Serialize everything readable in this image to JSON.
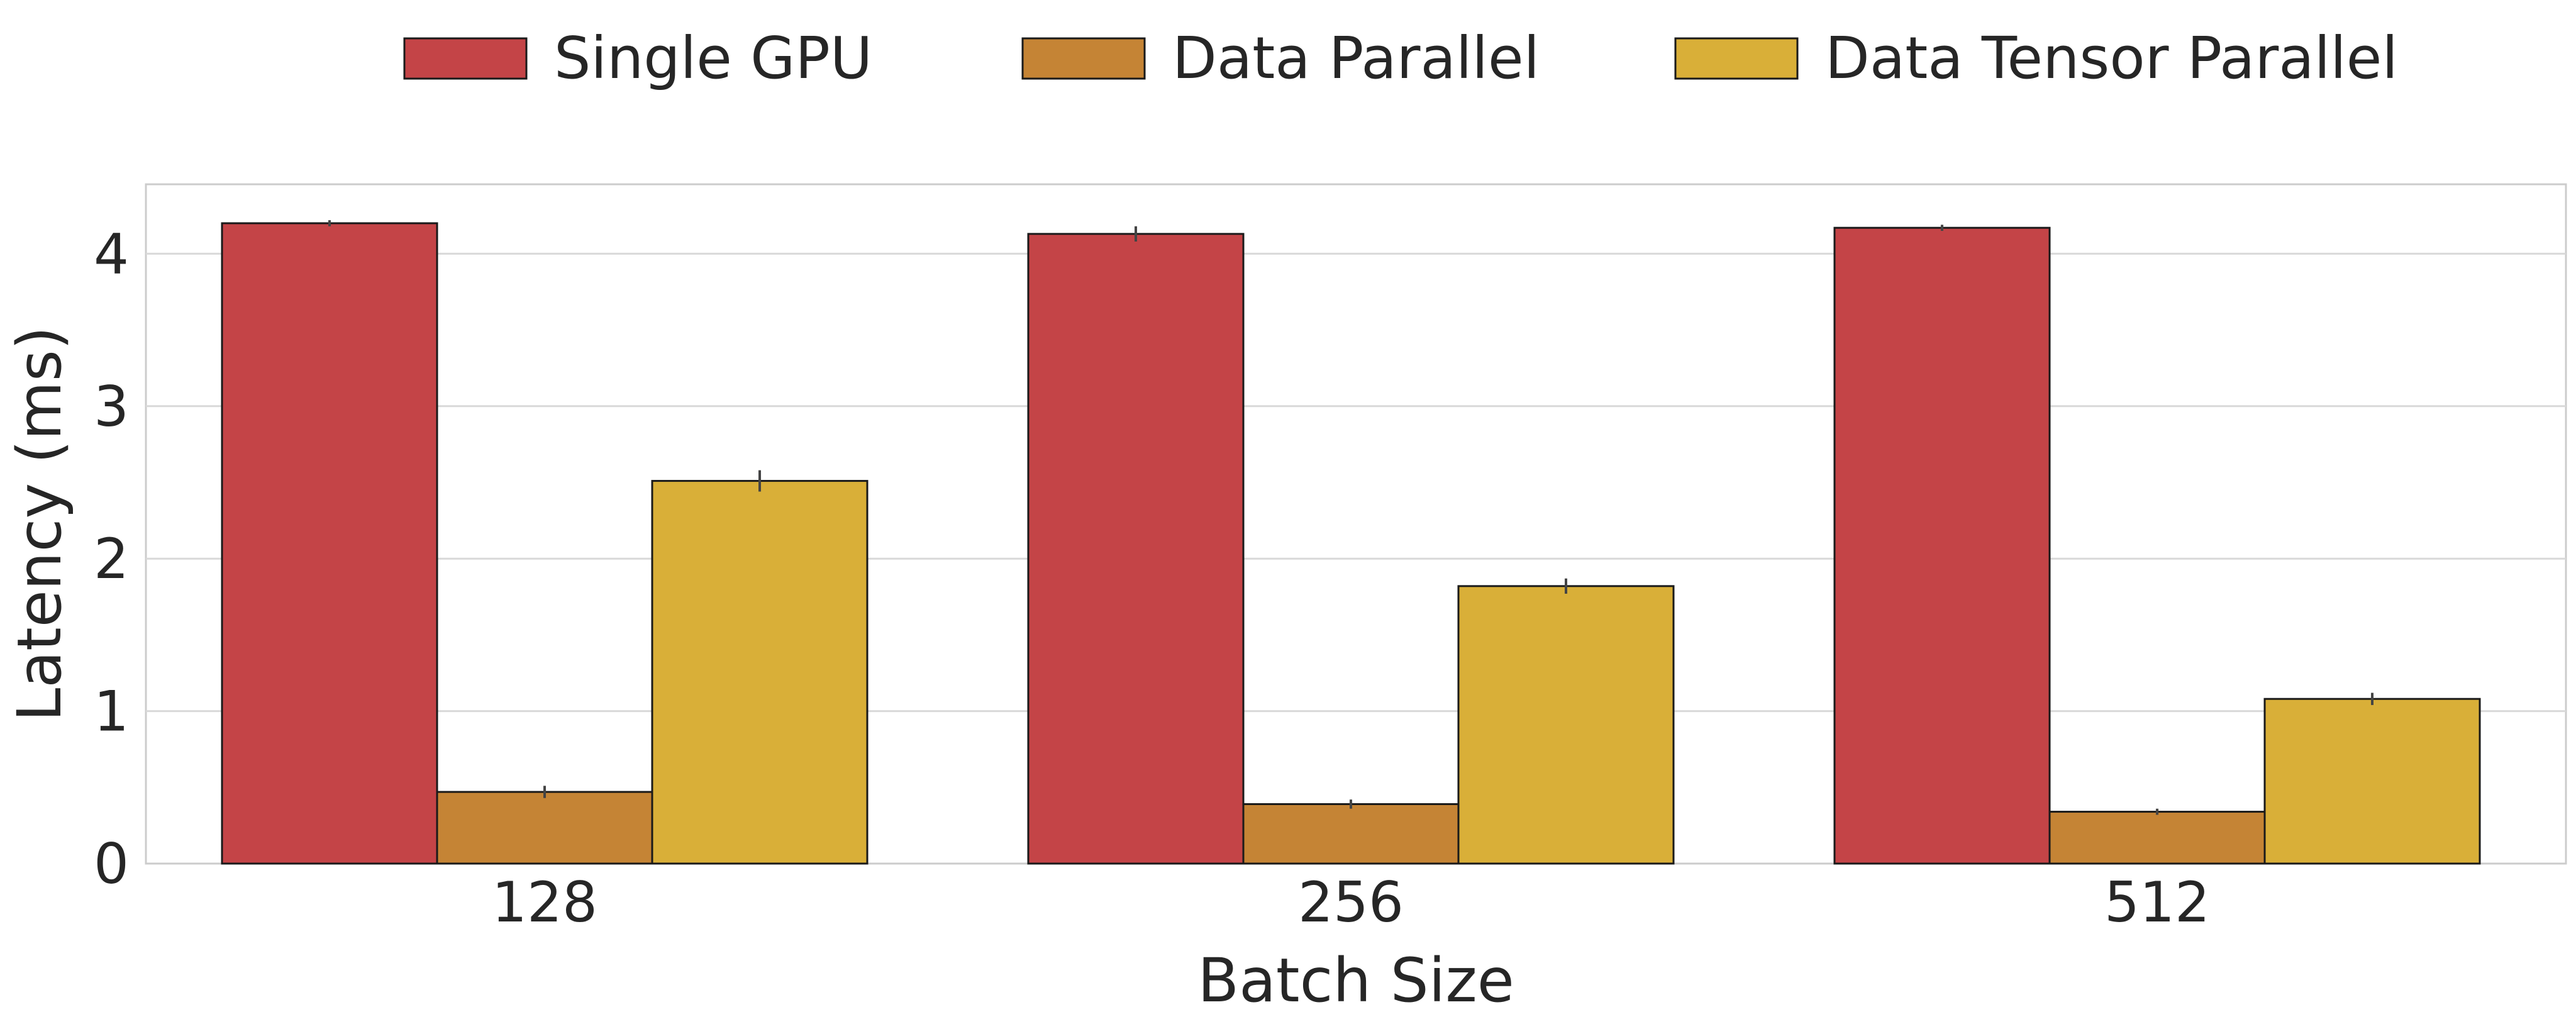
{
  "chart_data": {
    "type": "bar",
    "title": "",
    "xlabel": "Batch Size",
    "ylabel": "Latency (ms)",
    "categories": [
      "128",
      "256",
      "512"
    ],
    "series": [
      {
        "name": "Single GPU",
        "color": "#C44447",
        "values": [
          4.2,
          4.13,
          4.17
        ],
        "errors": [
          0.02,
          0.05,
          0.02
        ]
      },
      {
        "name": "Data Parallel",
        "color": "#C58435",
        "values": [
          0.47,
          0.39,
          0.34
        ],
        "errors": [
          0.04,
          0.03,
          0.02
        ]
      },
      {
        "name": "Data Tensor Parallel",
        "color": "#D9AF38",
        "values": [
          2.51,
          1.82,
          1.08
        ],
        "errors": [
          0.07,
          0.05,
          0.04
        ]
      }
    ],
    "ylim": [
      0,
      4.4
    ],
    "yticks": [
      0,
      1,
      2,
      3,
      4
    ],
    "grid": true,
    "legend_position": "top-center"
  }
}
